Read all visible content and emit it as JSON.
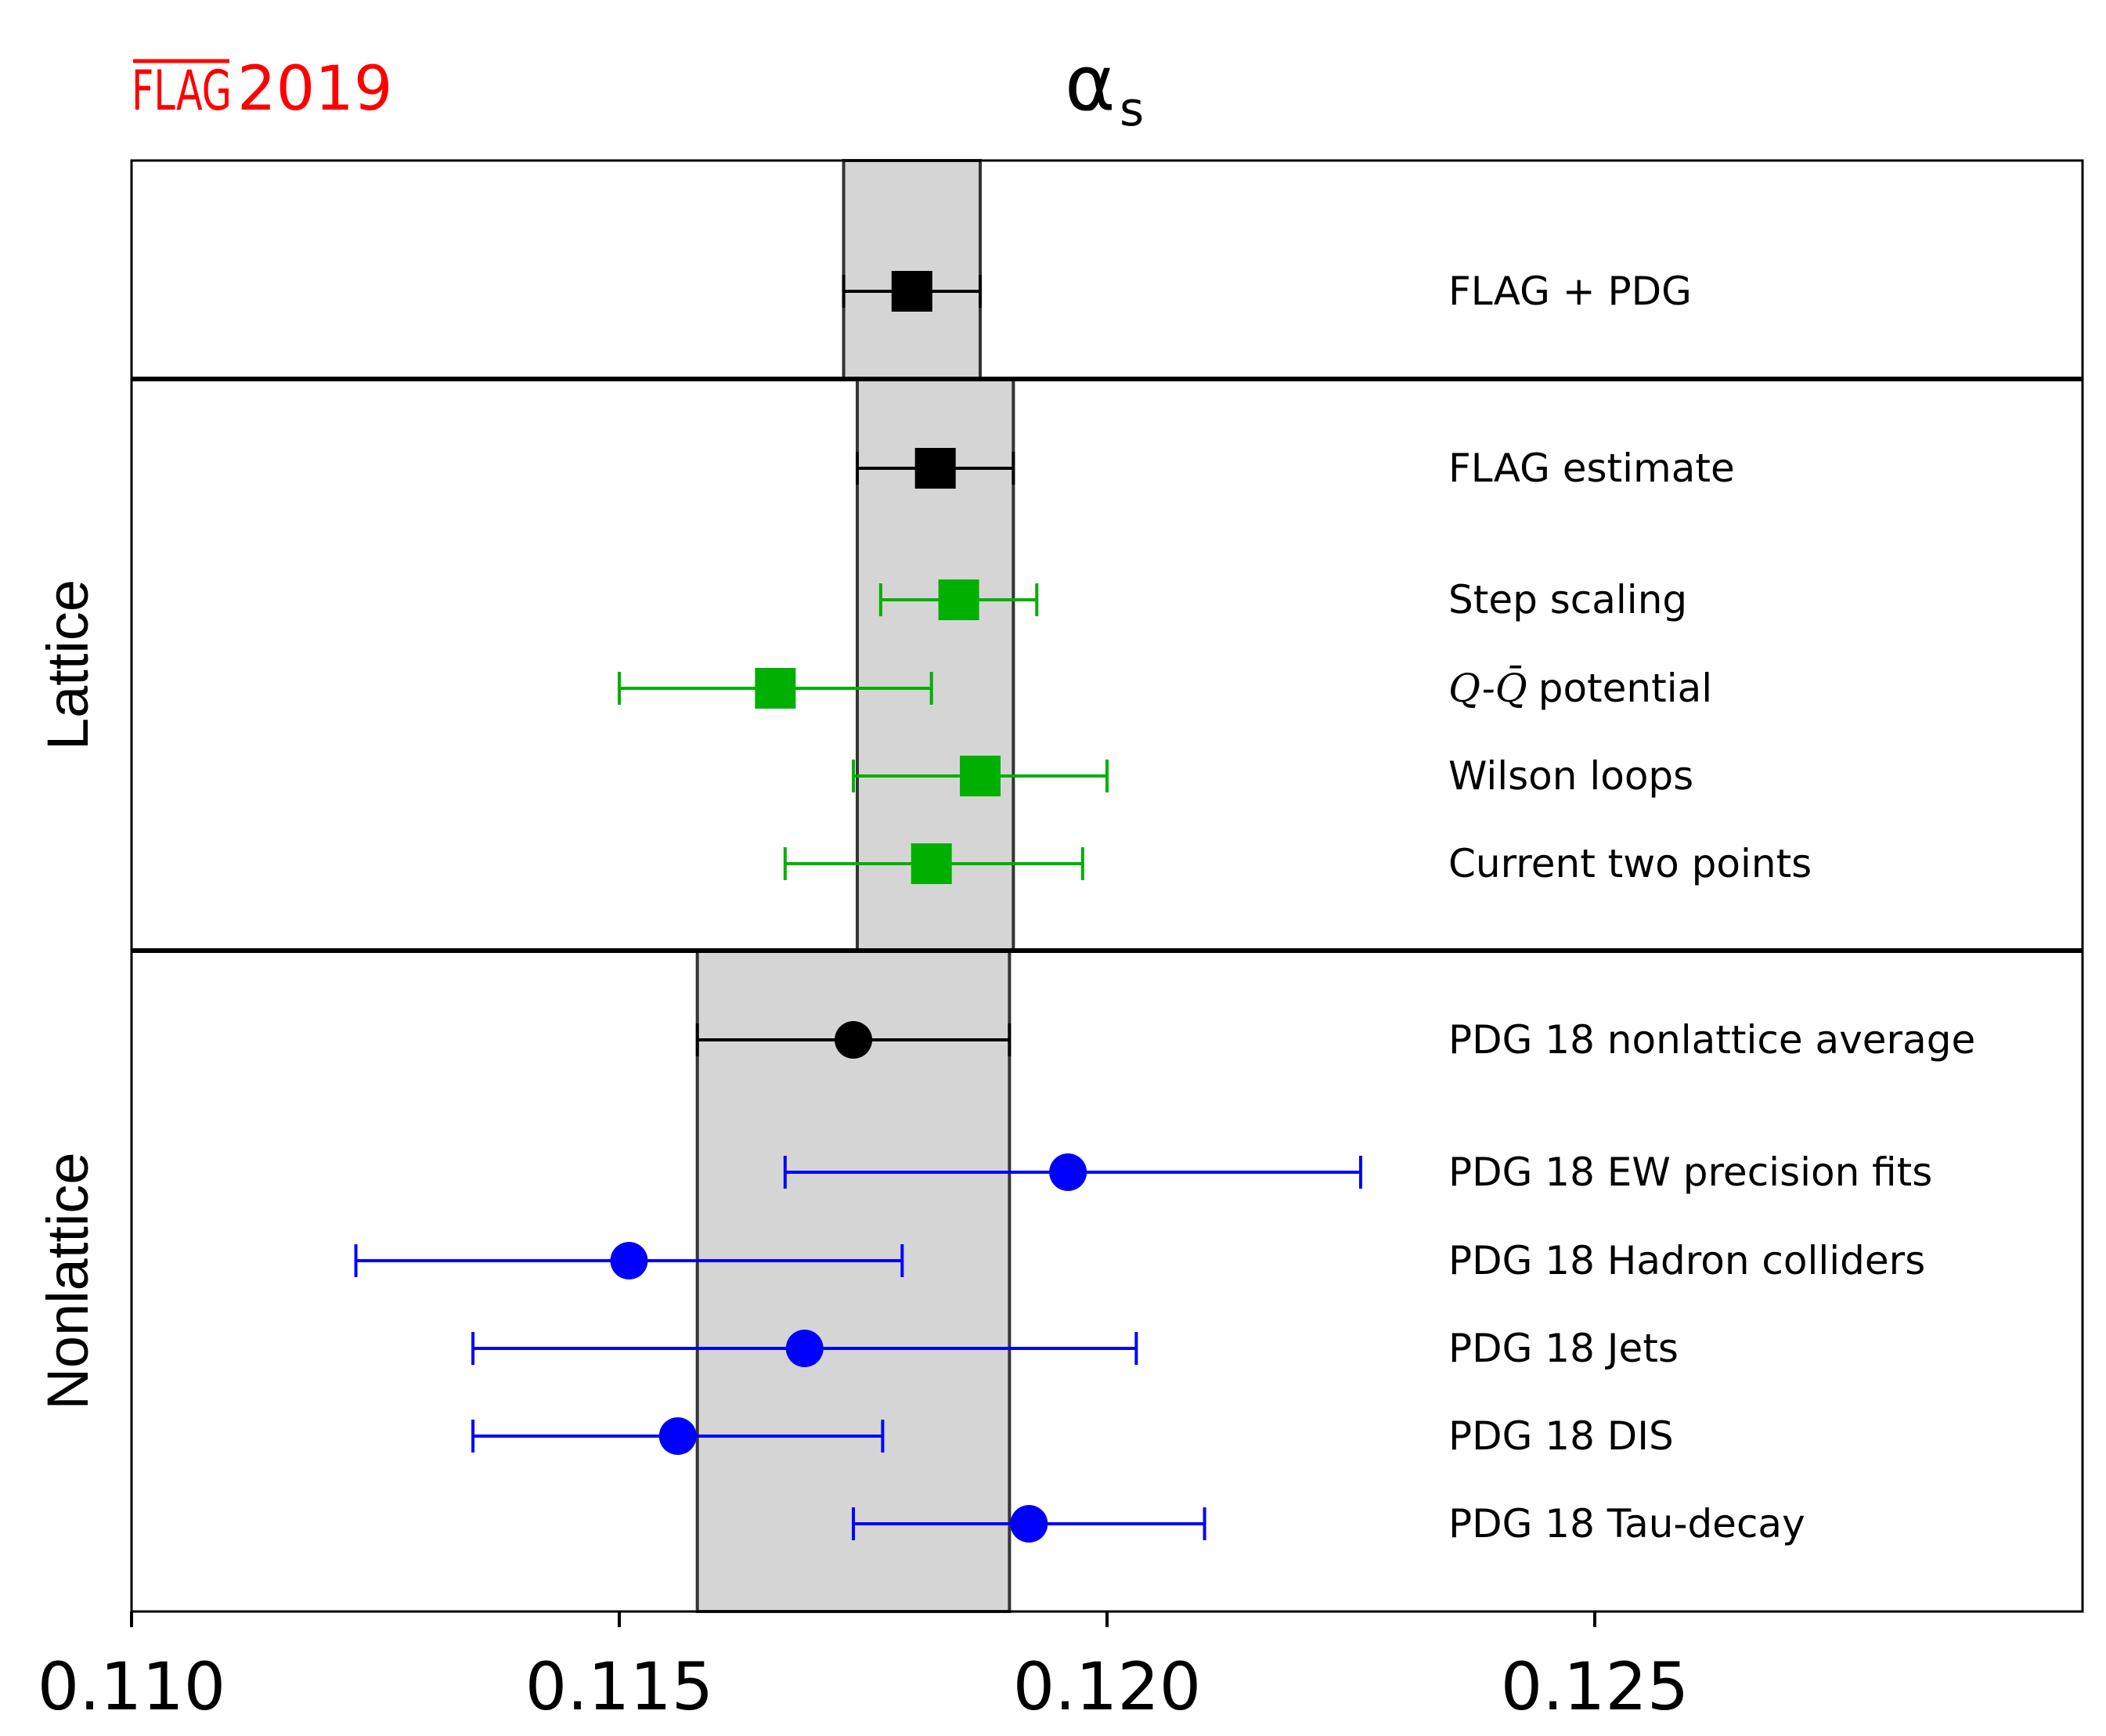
{
  "chart_data": {
    "type": "errorbar",
    "title": "α",
    "title_subscript": "s",
    "logo": {
      "overlined": "FLAG",
      "year": "2019",
      "color": "#ff0000"
    },
    "xlim": [
      0.11,
      0.13
    ],
    "xticks": [
      0.11,
      0.115,
      0.12,
      0.125
    ],
    "xtick_labels": [
      "0.110",
      "0.115",
      "0.120",
      "0.125"
    ],
    "colors": {
      "average": "#000000",
      "lattice": "#00b000",
      "nonlattice": "#0000ff",
      "band": "#d5d5d5"
    },
    "panels": [
      {
        "id": "combined",
        "label": "",
        "band": [
          0.1173,
          0.1187
        ],
        "rows": [
          {
            "label": "FLAG + PDG",
            "value": 0.118,
            "err_lo": 0.1173,
            "err_hi": 0.1187,
            "marker": "square",
            "color": "#000000"
          }
        ]
      },
      {
        "id": "lattice",
        "label": "Lattice",
        "band": [
          0.11744,
          0.11904
        ],
        "rows": [
          {
            "label": "FLAG estimate",
            "value": 0.11824,
            "err_lo": 0.11744,
            "err_hi": 0.11904,
            "marker": "square",
            "color": "#000000"
          },
          {
            "label": "Step scaling",
            "value": 0.11848,
            "err_lo": 0.11768,
            "err_hi": 0.11928,
            "marker": "square",
            "color": "#00b000"
          },
          {
            "label": "potential",
            "label_math": "Q-Q̄",
            "value": 0.1166,
            "err_lo": 0.115,
            "err_hi": 0.1182,
            "marker": "square",
            "color": "#00b000"
          },
          {
            "label": "Wilson loops",
            "value": 0.1187,
            "err_lo": 0.1174,
            "err_hi": 0.12,
            "marker": "square",
            "color": "#00b000"
          },
          {
            "label": "Current two points",
            "value": 0.1182,
            "err_lo": 0.1167,
            "err_hi": 0.11975,
            "marker": "square",
            "color": "#00b000"
          }
        ]
      },
      {
        "id": "nonlattice",
        "label": "Nonlattice",
        "band": [
          0.1158,
          0.119
        ],
        "rows": [
          {
            "label": "PDG 18 nonlattice average",
            "value": 0.1174,
            "err_lo": 0.1158,
            "err_hi": 0.119,
            "marker": "circle",
            "color": "#000000"
          },
          {
            "label": "PDG 18 EW precision fits",
            "value": 0.1196,
            "err_lo": 0.1167,
            "err_hi": 0.1226,
            "marker": "circle",
            "color": "#0000ff"
          },
          {
            "label": "PDG 18 Hadron colliders",
            "value": 0.1151,
            "err_lo": 0.1123,
            "err_hi": 0.1179,
            "marker": "circle",
            "color": "#0000ff"
          },
          {
            "label": "PDG 18 Jets",
            "value": 0.1169,
            "err_lo": 0.1135,
            "err_hi": 0.1203,
            "marker": "circle",
            "color": "#0000ff"
          },
          {
            "label": "PDG 18 DIS",
            "value": 0.1156,
            "err_lo": 0.1135,
            "err_hi": 0.1177,
            "marker": "circle",
            "color": "#0000ff"
          },
          {
            "label": "PDG 18 Tau-decay",
            "value": 0.1192,
            "err_lo": 0.1174,
            "err_hi": 0.121,
            "marker": "circle",
            "color": "#0000ff"
          }
        ]
      }
    ]
  }
}
